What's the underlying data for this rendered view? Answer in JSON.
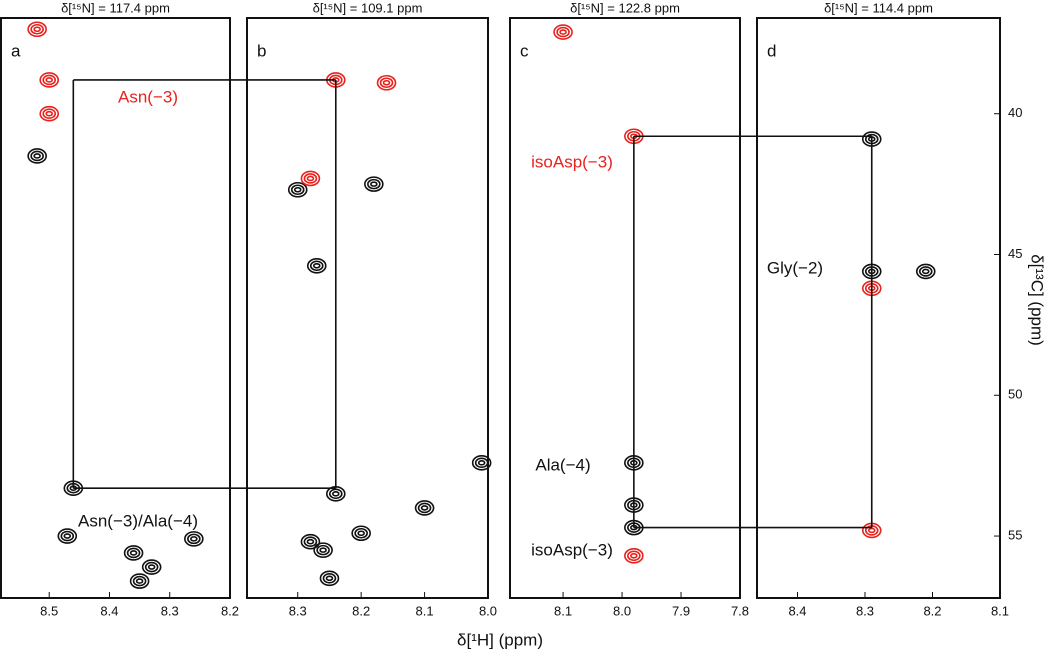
{
  "chart_data": {
    "type": "nmr-strips",
    "x_label": "δ[¹H] (ppm)",
    "y_label": "δ[¹³C] (ppm)",
    "ylim": [
      57.2,
      36.6
    ],
    "yticks": [
      40,
      45,
      50,
      55
    ],
    "panels": [
      {
        "letter": "a",
        "title": "δ[¹⁵N] = 117.4 ppm",
        "xlim": [
          8.58,
          8.2
        ],
        "xticks": [
          8.5,
          8.4,
          8.3,
          8.2
        ],
        "labels": [
          {
            "text": "Asn(−3)",
            "color": "#e8221c"
          },
          {
            "text": "Asn(−3)/Ala(−4)",
            "color": "#111111"
          }
        ],
        "peaks": [
          {
            "x": 8.46,
            "y": 53.3,
            "color": "#111111"
          },
          {
            "x": 8.5,
            "y": 38.8,
            "color": "#e8221c"
          },
          {
            "x": 8.5,
            "y": 40.0,
            "color": "#e8221c"
          },
          {
            "x": 8.52,
            "y": 41.5,
            "color": "#111111"
          },
          {
            "x": 8.36,
            "y": 55.6,
            "color": "#111111"
          },
          {
            "x": 8.33,
            "y": 56.1,
            "color": "#111111"
          },
          {
            "x": 8.35,
            "y": 56.6,
            "color": "#111111"
          },
          {
            "x": 8.26,
            "y": 55.1,
            "color": "#111111"
          },
          {
            "x": 8.47,
            "y": 55.0,
            "color": "#111111"
          },
          {
            "x": 8.52,
            "y": 37.0,
            "color": "#e8221c"
          }
        ]
      },
      {
        "letter": "b",
        "title": "δ[¹⁵N] = 109.1 ppm",
        "xlim": [
          8.38,
          8.0
        ],
        "xticks": [
          8.3,
          8.2,
          8.1,
          {
            "value": 8,
            "label": "8.0"
          }
        ],
        "labels": [],
        "peaks": [
          {
            "x": 8.24,
            "y": 38.8,
            "color": "#e8221c"
          },
          {
            "x": 8.27,
            "y": 45.4,
            "color": "#111111"
          },
          {
            "x": 8.24,
            "y": 53.5,
            "color": "#111111"
          },
          {
            "x": 8.26,
            "y": 55.5,
            "color": "#111111"
          },
          {
            "x": 8.28,
            "y": 55.2,
            "color": "#111111"
          },
          {
            "x": 8.25,
            "y": 56.5,
            "color": "#111111"
          },
          {
            "x": 8.2,
            "y": 54.9,
            "color": "#111111"
          },
          {
            "x": 8.1,
            "y": 54.0,
            "color": "#111111"
          },
          {
            "x": 8.01,
            "y": 52.4,
            "color": "#111111"
          },
          {
            "x": 8.3,
            "y": 42.7,
            "color": "#111111"
          },
          {
            "x": 8.18,
            "y": 42.5,
            "color": "#111111"
          },
          {
            "x": 8.16,
            "y": 38.9,
            "color": "#e8221c"
          },
          {
            "x": 8.28,
            "y": 42.3,
            "color": "#e8221c"
          }
        ]
      },
      {
        "letter": "c",
        "title": "δ[¹⁵N] = 122.8 ppm",
        "xlim": [
          8.19,
          7.8
        ],
        "xticks": [
          8.1,
          {
            "value": 8,
            "label": "8.0"
          },
          7.9,
          7.8
        ],
        "labels": [
          {
            "text": "isoAsp(−3)",
            "color": "#e8221c"
          },
          {
            "text": "Ala(−4)",
            "color": "#111111"
          },
          {
            "text": "isoAsp(−3)",
            "color": "#111111"
          }
        ],
        "peaks": [
          {
            "x": 7.98,
            "y": 40.8,
            "color": "#e8221c"
          },
          {
            "x": 7.98,
            "y": 52.4,
            "color": "#111111"
          },
          {
            "x": 7.98,
            "y": 54.7,
            "color": "#111111"
          },
          {
            "x": 7.98,
            "y": 55.7,
            "color": "#e8221c"
          },
          {
            "x": 7.98,
            "y": 53.9,
            "color": "#111111"
          },
          {
            "x": 8.1,
            "y": 37.1,
            "color": "#e8221c"
          }
        ]
      },
      {
        "letter": "d",
        "title": "δ[¹⁵N] = 114.4 ppm",
        "xlim": [
          8.46,
          8.1
        ],
        "xticks": [
          8.4,
          8.3,
          8.2,
          8.1
        ],
        "labels": [
          {
            "text": "Gly(−2)",
            "color": "#111111"
          }
        ],
        "peaks": [
          {
            "x": 8.29,
            "y": 40.9,
            "color": "#111111"
          },
          {
            "x": 8.29,
            "y": 45.6,
            "color": "#111111"
          },
          {
            "x": 8.29,
            "y": 46.2,
            "color": "#e8221c"
          },
          {
            "x": 8.21,
            "y": 45.6,
            "color": "#111111"
          },
          {
            "x": 8.29,
            "y": 54.8,
            "color": "#e8221c"
          }
        ]
      }
    ]
  }
}
